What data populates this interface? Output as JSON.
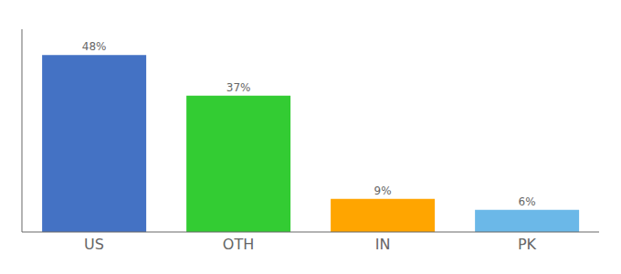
{
  "chart_data": {
    "type": "bar",
    "categories": [
      "US",
      "OTH",
      "IN",
      "PK"
    ],
    "values": [
      48,
      37,
      9,
      6
    ],
    "value_labels": [
      "48%",
      "37%",
      "9%",
      "6%"
    ],
    "colors": [
      "#4472C4",
      "#33CC33",
      "#FFA500",
      "#6BB8E8"
    ],
    "ylim": [
      0,
      55
    ],
    "grid": false,
    "data_labels": true,
    "tick_labels": "x"
  }
}
